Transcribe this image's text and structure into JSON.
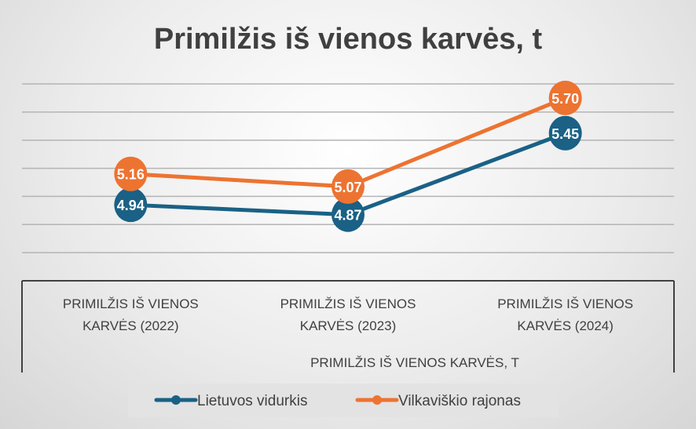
{
  "chart_data": {
    "type": "line",
    "title": "Primilžis iš vienos karvės, t",
    "categories": [
      "PRIMILŽIS IŠ VIENOS KARVĖS (2022)",
      "PRIMILŽIS IŠ VIENOS KARVĖS (2023)",
      "PRIMILŽIS IŠ VIENOS KARVĖS (2024)"
    ],
    "category_lines": [
      [
        "PRIMILŽIS IŠ VIENOS",
        "KARVĖS (2022)"
      ],
      [
        "PRIMILŽIS IŠ VIENOS",
        "KARVĖS (2023)"
      ],
      [
        "PRIMILŽIS IŠ VIENOS",
        "KARVĖS (2024)"
      ]
    ],
    "group_label": "PRIMILŽIS IŠ VIENOS KARVĖS, T",
    "series": [
      {
        "name": "Lietuvos vidurkis",
        "color": "#1a6185",
        "values": [
          4.94,
          4.87,
          5.45
        ],
        "labels": [
          "4.94",
          "4.87",
          "5.45"
        ]
      },
      {
        "name": "Vilkaviškio rajonas",
        "color": "#ed7331",
        "values": [
          5.16,
          5.07,
          5.7
        ],
        "labels": [
          "5.16",
          "5.07",
          "5.70"
        ]
      }
    ],
    "xlabel": "",
    "ylabel": "",
    "ylim": [
      4.4,
      5.8
    ],
    "ystep": 0.2,
    "grid": true,
    "legend": "bottom"
  }
}
